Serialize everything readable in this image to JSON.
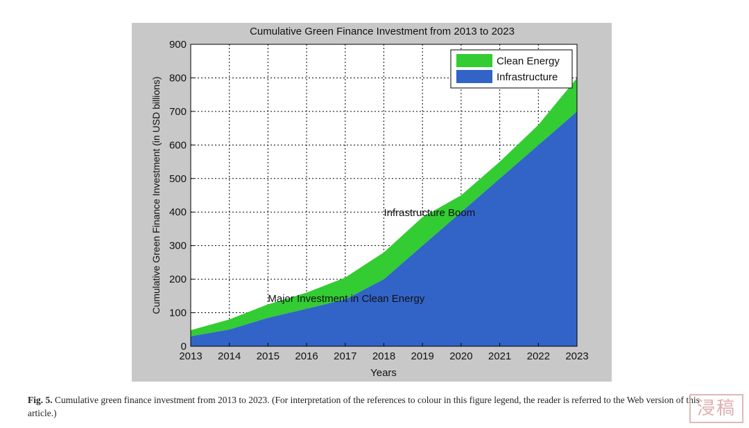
{
  "chart_data": {
    "type": "area",
    "stacked": true,
    "title": "Cumulative Green Finance Investment from 2013 to 2023",
    "xlabel": "Years",
    "ylabel": "Cumulative Green Finance Investment (in USD billions)",
    "x": [
      2013,
      2014,
      2015,
      2016,
      2017,
      2018,
      2019,
      2020,
      2021,
      2022,
      2023
    ],
    "xlim": [
      2013,
      2023
    ],
    "ylim": [
      0,
      900
    ],
    "yticks": [
      0,
      100,
      200,
      300,
      400,
      500,
      600,
      700,
      800,
      900
    ],
    "grid": true,
    "legend_position": "top-right",
    "series": [
      {
        "name": "Infrastructure",
        "color": "#3264c8",
        "values": [
          30,
          50,
          85,
          112,
          140,
          200,
          300,
          400,
          500,
          600,
          700
        ]
      },
      {
        "name": "Clean Energy",
        "color": "#33cc33",
        "values": [
          18,
          30,
          40,
          48,
          65,
          80,
          85,
          50,
          50,
          60,
          100
        ]
      }
    ],
    "annotations": [
      {
        "text": "Infrastructure Boom",
        "x": 2018,
        "y": 400
      },
      {
        "text": "Major Investment in Clean Energy",
        "x": 2015,
        "y": 145
      }
    ]
  },
  "caption": {
    "label": "Fig. 5.",
    "text": "Cumulative green finance investment from 2013 to 2023. (For interpretation of the references to colour in this figure legend, the reader is referred to the Web version of this article.)"
  },
  "watermark": {
    "text": "浸稿"
  }
}
